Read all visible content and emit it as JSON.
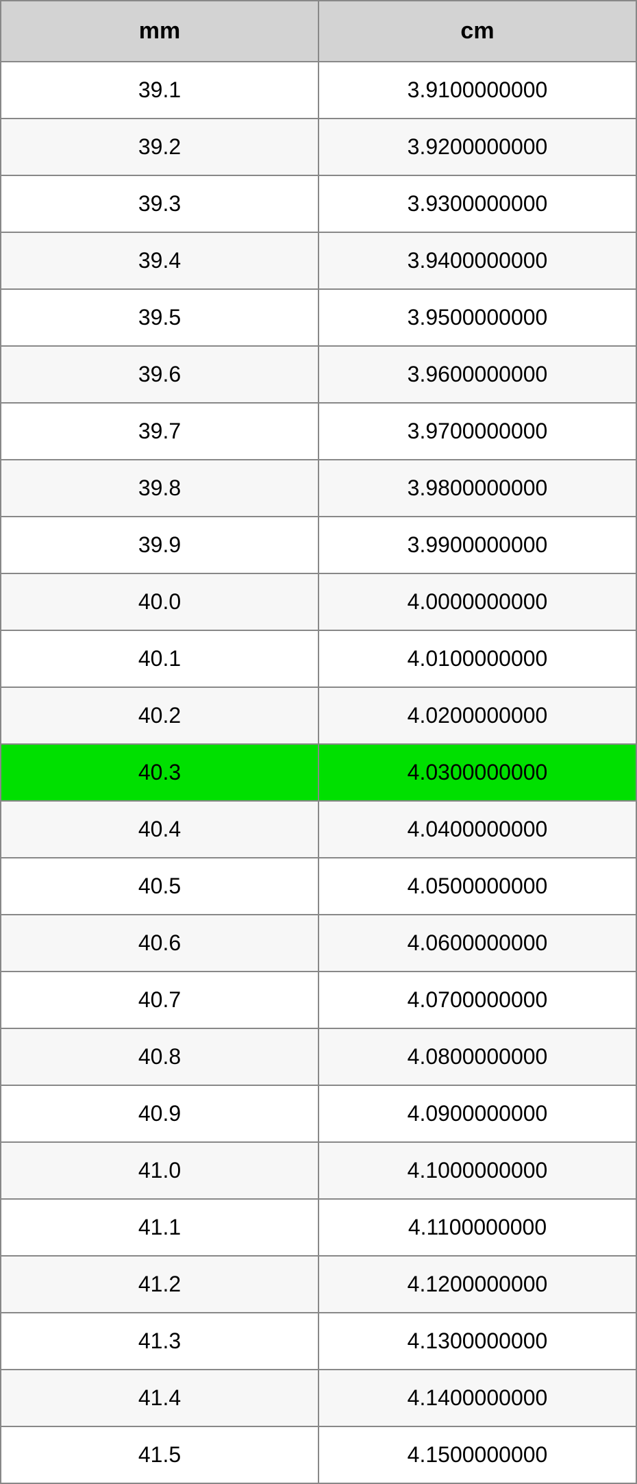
{
  "table": {
    "columns": [
      "mm",
      "cm"
    ],
    "header_bg": "#d3d3d3",
    "border_color": "#888888",
    "even_row_bg": "#ffffff",
    "odd_row_bg": "#f7f7f7",
    "highlight_bg": "#00e000",
    "header_fontsize": 34,
    "cell_fontsize": 32,
    "text_color": "#000000",
    "highlighted_index": 12,
    "rows": [
      [
        "39.1",
        "3.9100000000"
      ],
      [
        "39.2",
        "3.9200000000"
      ],
      [
        "39.3",
        "3.9300000000"
      ],
      [
        "39.4",
        "3.9400000000"
      ],
      [
        "39.5",
        "3.9500000000"
      ],
      [
        "39.6",
        "3.9600000000"
      ],
      [
        "39.7",
        "3.9700000000"
      ],
      [
        "39.8",
        "3.9800000000"
      ],
      [
        "39.9",
        "3.9900000000"
      ],
      [
        "40.0",
        "4.0000000000"
      ],
      [
        "40.1",
        "4.0100000000"
      ],
      [
        "40.2",
        "4.0200000000"
      ],
      [
        "40.3",
        "4.0300000000"
      ],
      [
        "40.4",
        "4.0400000000"
      ],
      [
        "40.5",
        "4.0500000000"
      ],
      [
        "40.6",
        "4.0600000000"
      ],
      [
        "40.7",
        "4.0700000000"
      ],
      [
        "40.8",
        "4.0800000000"
      ],
      [
        "40.9",
        "4.0900000000"
      ],
      [
        "41.0",
        "4.1000000000"
      ],
      [
        "41.1",
        "4.1100000000"
      ],
      [
        "41.2",
        "4.1200000000"
      ],
      [
        "41.3",
        "4.1300000000"
      ],
      [
        "41.4",
        "4.1400000000"
      ],
      [
        "41.5",
        "4.1500000000"
      ]
    ]
  }
}
